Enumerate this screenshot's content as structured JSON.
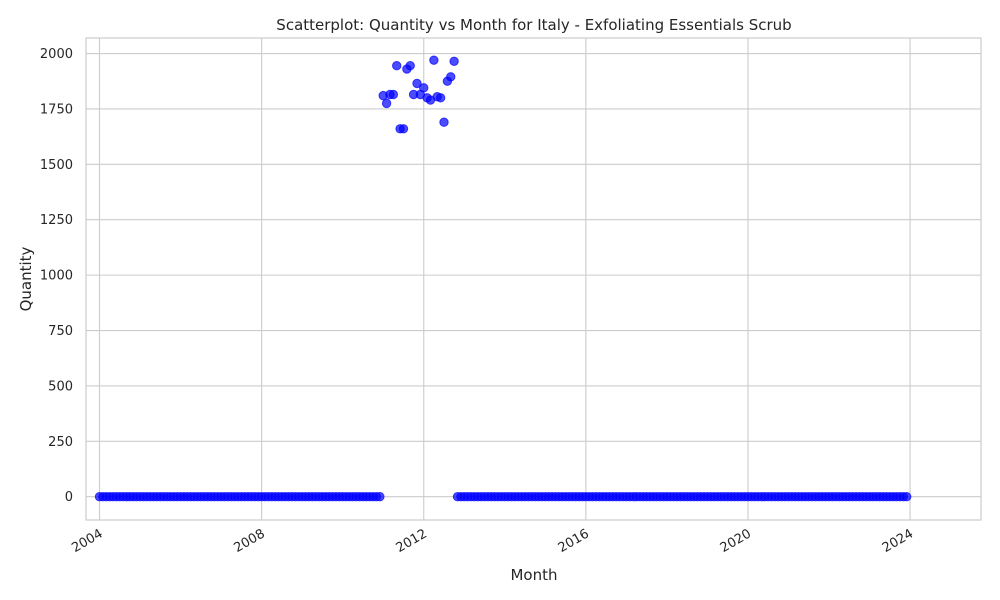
{
  "chart_data": {
    "type": "scatter",
    "title": "Scatterplot: Quantity vs Month for Italy - Exfoliating Essentials Scrub",
    "xlabel": "Month",
    "ylabel": "Quantity",
    "x_tick_labels": [
      "2004",
      "2008",
      "2012",
      "2016",
      "2020",
      "2024"
    ],
    "y_tick_labels": [
      "0",
      "250",
      "500",
      "750",
      "1000",
      "1250",
      "1500",
      "1750",
      "2000"
    ],
    "xlim": [
      "2003-09",
      "2025-10"
    ],
    "ylim": [
      -105,
      2070
    ],
    "grid": true,
    "marker_color": "#0000ff",
    "zero_range_1": {
      "start": "2004-01",
      "end": "2010-12",
      "value": 0
    },
    "zero_range_2": {
      "start": "2012-11",
      "end": "2023-12",
      "value": 0
    },
    "points": [
      {
        "x": "2011-01",
        "y": 1810
      },
      {
        "x": "2011-02",
        "y": 1775
      },
      {
        "x": "2011-03",
        "y": 1815
      },
      {
        "x": "2011-04",
        "y": 1815
      },
      {
        "x": "2011-05",
        "y": 1945
      },
      {
        "x": "2011-06",
        "y": 1660
      },
      {
        "x": "2011-07",
        "y": 1660
      },
      {
        "x": "2011-08",
        "y": 1930
      },
      {
        "x": "2011-09",
        "y": 1945
      },
      {
        "x": "2011-10",
        "y": 1815
      },
      {
        "x": "2011-11",
        "y": 1865
      },
      {
        "x": "2011-12",
        "y": 1815
      },
      {
        "x": "2012-01",
        "y": 1845
      },
      {
        "x": "2012-02",
        "y": 1800
      },
      {
        "x": "2012-03",
        "y": 1790
      },
      {
        "x": "2012-04",
        "y": 1970
      },
      {
        "x": "2012-05",
        "y": 1805
      },
      {
        "x": "2012-06",
        "y": 1800
      },
      {
        "x": "2012-07",
        "y": 1690
      },
      {
        "x": "2012-08",
        "y": 1875
      },
      {
        "x": "2012-09",
        "y": 1895
      },
      {
        "x": "2012-10",
        "y": 1965
      }
    ]
  }
}
